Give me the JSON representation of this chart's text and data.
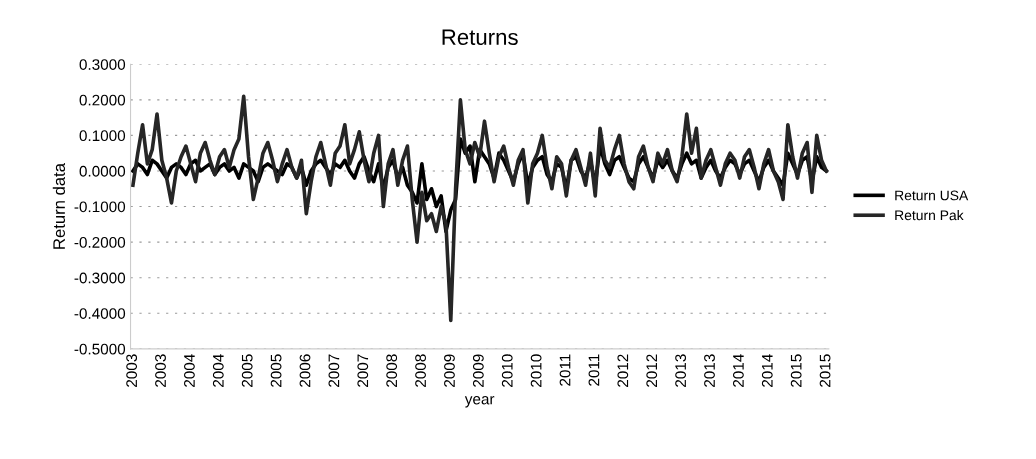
{
  "chart_data": {
    "type": "line",
    "title": "Returns",
    "xlabel": "year",
    "ylabel": "Return data",
    "categories": [
      "2003",
      null,
      null,
      null,
      null,
      null,
      "2003",
      null,
      null,
      null,
      null,
      null,
      "2004",
      null,
      null,
      null,
      null,
      null,
      "2004",
      null,
      null,
      null,
      null,
      null,
      "2005",
      null,
      null,
      null,
      null,
      null,
      "2005",
      null,
      null,
      null,
      null,
      null,
      "2006",
      null,
      null,
      null,
      null,
      null,
      "2007",
      null,
      null,
      null,
      null,
      null,
      "2007",
      null,
      null,
      null,
      null,
      null,
      "2008",
      null,
      null,
      null,
      null,
      null,
      "2008",
      null,
      null,
      null,
      null,
      null,
      "2009",
      null,
      null,
      null,
      null,
      null,
      "2009",
      null,
      null,
      null,
      null,
      null,
      "2010",
      null,
      null,
      null,
      null,
      null,
      "2010",
      null,
      null,
      null,
      null,
      null,
      "2011",
      null,
      null,
      null,
      null,
      null,
      "2011",
      null,
      null,
      null,
      null,
      null,
      "2012",
      null,
      null,
      null,
      null,
      null,
      "2012",
      null,
      null,
      null,
      null,
      null,
      "2013",
      null,
      null,
      null,
      null,
      null,
      "2013",
      null,
      null,
      null,
      null,
      null,
      "2014",
      null,
      null,
      null,
      null,
      null,
      "2014",
      null,
      null,
      null,
      null,
      null,
      "2015",
      null,
      null,
      null,
      null,
      null,
      "2015"
    ],
    "series": [
      {
        "name": "Return USA",
        "color": "#000000",
        "values": [
          0.0,
          0.02,
          0.01,
          -0.01,
          0.03,
          0.02,
          0.0,
          -0.02,
          0.01,
          0.02,
          0.01,
          -0.01,
          0.02,
          0.03,
          0.0,
          0.01,
          0.02,
          -0.01,
          0.01,
          0.02,
          0.0,
          0.01,
          -0.02,
          0.02,
          0.01,
          0.0,
          -0.03,
          0.01,
          0.02,
          0.01,
          0.0,
          -0.01,
          0.02,
          0.01,
          -0.02,
          0.01,
          -0.04,
          0.0,
          0.02,
          0.03,
          0.01,
          -0.01,
          0.02,
          0.01,
          0.03,
          0.0,
          -0.02,
          0.02,
          0.04,
          0.0,
          -0.03,
          0.02,
          -0.05,
          0.01,
          0.03,
          -0.02,
          0.01,
          -0.04,
          -0.06,
          -0.09,
          0.02,
          -0.08,
          -0.05,
          -0.1,
          -0.07,
          -0.17,
          -0.11,
          -0.08,
          0.09,
          0.05,
          0.07,
          -0.03,
          0.06,
          0.04,
          0.02,
          -0.02,
          0.05,
          0.03,
          0.0,
          -0.03,
          0.02,
          0.05,
          -0.04,
          0.01,
          0.03,
          0.04,
          -0.01,
          -0.03,
          0.02,
          0.01,
          -0.05,
          0.03,
          0.04,
          0.0,
          -0.02,
          0.03,
          -0.04,
          0.07,
          0.02,
          -0.01,
          0.03,
          0.04,
          0.01,
          -0.02,
          -0.03,
          0.02,
          0.04,
          0.01,
          -0.02,
          0.03,
          0.01,
          0.03,
          0.0,
          -0.02,
          0.02,
          0.05,
          0.02,
          0.03,
          -0.02,
          0.01,
          0.03,
          0.0,
          -0.02,
          0.01,
          0.03,
          0.02,
          -0.01,
          0.02,
          0.03,
          0.0,
          -0.03,
          0.01,
          0.03,
          0.0,
          -0.02,
          -0.04,
          0.05,
          0.02,
          -0.01,
          0.03,
          0.04,
          -0.03,
          0.04,
          0.01,
          0.0
        ]
      },
      {
        "name": "Return Pak",
        "color": "#262626",
        "values": [
          -0.04,
          0.05,
          0.13,
          0.02,
          0.06,
          0.16,
          0.03,
          -0.02,
          -0.09,
          0.0,
          0.04,
          0.07,
          0.02,
          -0.03,
          0.05,
          0.08,
          0.03,
          -0.01,
          0.04,
          0.06,
          0.01,
          0.06,
          0.09,
          0.21,
          0.04,
          -0.08,
          -0.02,
          0.05,
          0.08,
          0.03,
          -0.03,
          0.02,
          0.06,
          0.01,
          -0.02,
          0.03,
          -0.12,
          -0.03,
          0.04,
          0.08,
          0.02,
          -0.04,
          0.05,
          0.07,
          0.13,
          0.02,
          0.06,
          0.11,
          0.03,
          -0.03,
          0.05,
          0.1,
          -0.1,
          0.02,
          0.06,
          -0.04,
          0.03,
          0.07,
          -0.08,
          -0.2,
          -0.06,
          -0.14,
          -0.12,
          -0.17,
          -0.1,
          -0.15,
          -0.42,
          -0.05,
          0.2,
          0.06,
          0.02,
          0.08,
          0.04,
          0.14,
          0.05,
          -0.03,
          0.04,
          0.07,
          0.01,
          -0.04,
          0.03,
          0.06,
          -0.09,
          0.02,
          0.05,
          0.1,
          0.01,
          -0.05,
          0.04,
          0.02,
          -0.07,
          0.03,
          0.06,
          0.01,
          -0.04,
          0.05,
          -0.07,
          0.12,
          0.03,
          0.01,
          0.06,
          0.1,
          0.02,
          -0.03,
          -0.05,
          0.04,
          0.07,
          0.01,
          -0.03,
          0.05,
          0.02,
          0.06,
          0.0,
          -0.03,
          0.04,
          0.16,
          0.05,
          0.12,
          -0.02,
          0.03,
          0.06,
          0.01,
          -0.04,
          0.02,
          0.05,
          0.03,
          -0.02,
          0.04,
          0.06,
          0.01,
          -0.05,
          0.02,
          0.06,
          0.0,
          -0.03,
          -0.08,
          0.13,
          0.04,
          -0.02,
          0.05,
          0.08,
          -0.06,
          0.1,
          0.03,
          0.0
        ]
      }
    ],
    "ylim": [
      -0.5,
      0.3
    ],
    "yticks": [
      {
        "value": -0.5,
        "label": "-0.5000"
      },
      {
        "value": -0.4,
        "label": "-0.4000"
      },
      {
        "value": -0.3,
        "label": "-0.3000"
      },
      {
        "value": -0.2,
        "label": "-0.2000"
      },
      {
        "value": -0.1,
        "label": "-0.1000"
      },
      {
        "value": 0.0,
        "label": "0.0000"
      },
      {
        "value": 0.1,
        "label": "0.1000"
      },
      {
        "value": 0.2,
        "label": "0.2000"
      },
      {
        "value": 0.3,
        "label": "0.3000"
      }
    ],
    "grid": "y",
    "legend": "right",
    "marker": "none",
    "line_style": "solid"
  }
}
